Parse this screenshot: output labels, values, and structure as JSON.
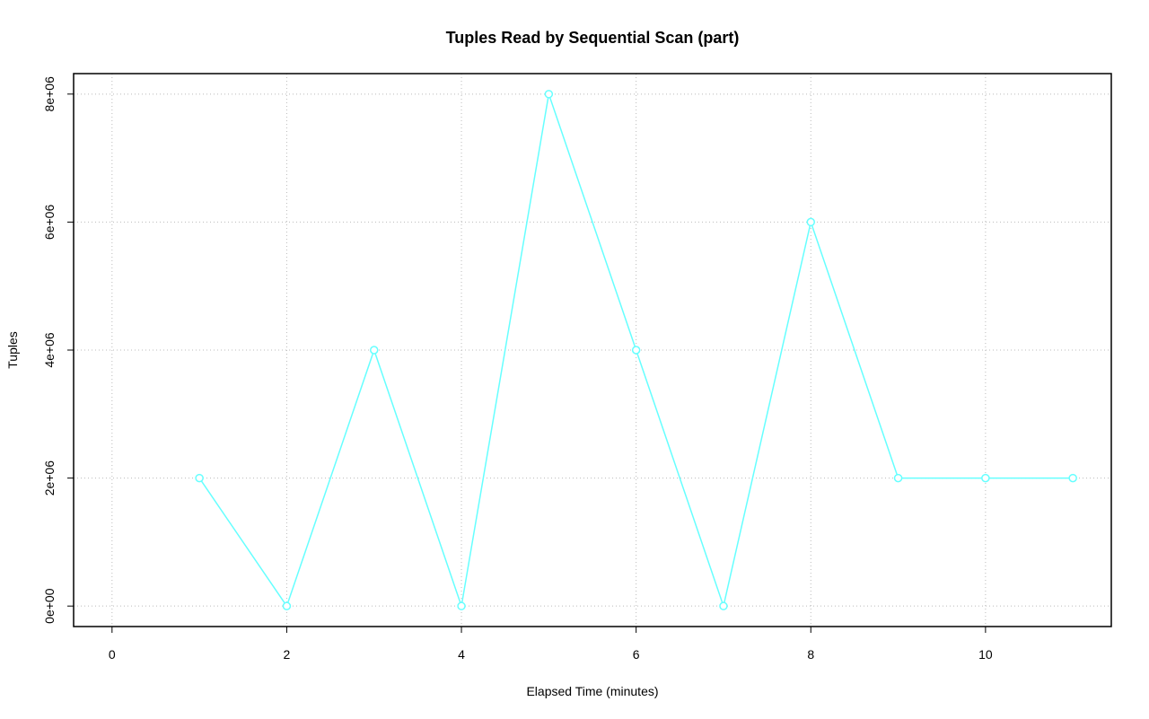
{
  "chart_data": {
    "type": "line",
    "title": "Tuples Read by Sequential Scan (part)",
    "xlabel": "Elapsed Time (minutes)",
    "ylabel": "Tuples",
    "x": [
      1,
      2,
      3,
      4,
      5,
      6,
      7,
      8,
      9,
      10,
      11
    ],
    "series": [
      {
        "color": "#66ffff",
        "values": [
          2000000,
          0,
          4000000,
          0,
          8000000,
          4000000,
          0,
          6000000,
          2000000,
          2000000,
          2000000
        ]
      }
    ],
    "xlim": [
      -0.44,
      11.44
    ],
    "xticks": [
      0,
      2,
      4,
      6,
      8,
      10
    ],
    "ylim": [
      -320000,
      8320000
    ],
    "yticks": [
      {
        "value": 0,
        "label": "0e+00"
      },
      {
        "value": 2000000,
        "label": "2e+06"
      },
      {
        "value": 4000000,
        "label": "4e+06"
      },
      {
        "value": 6000000,
        "label": "6e+06"
      },
      {
        "value": 8000000,
        "label": "8e+06"
      }
    ],
    "grid": true
  }
}
